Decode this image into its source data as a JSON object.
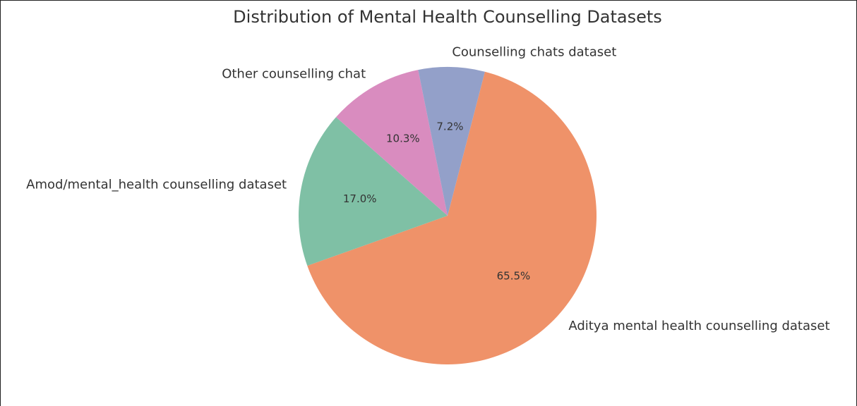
{
  "chart_data": {
    "type": "pie",
    "title": "Distribution of Mental Health Counselling Datasets",
    "slices": [
      {
        "label": "Aditya mental health counselling dataset",
        "value": 65.5,
        "pct_label": "65.5%",
        "color": "#ef9269"
      },
      {
        "label": "Amod/mental_health counselling dataset",
        "value": 17.0,
        "pct_label": "17.0%",
        "color": "#7fc0a5"
      },
      {
        "label": "Other counselling chat",
        "value": 10.3,
        "pct_label": "10.3%",
        "color": "#d98cbf"
      },
      {
        "label": "Counselling chats dataset",
        "value": 7.2,
        "pct_label": "7.2%",
        "color": "#93a0c9"
      }
    ],
    "direction": "clockwise"
  }
}
